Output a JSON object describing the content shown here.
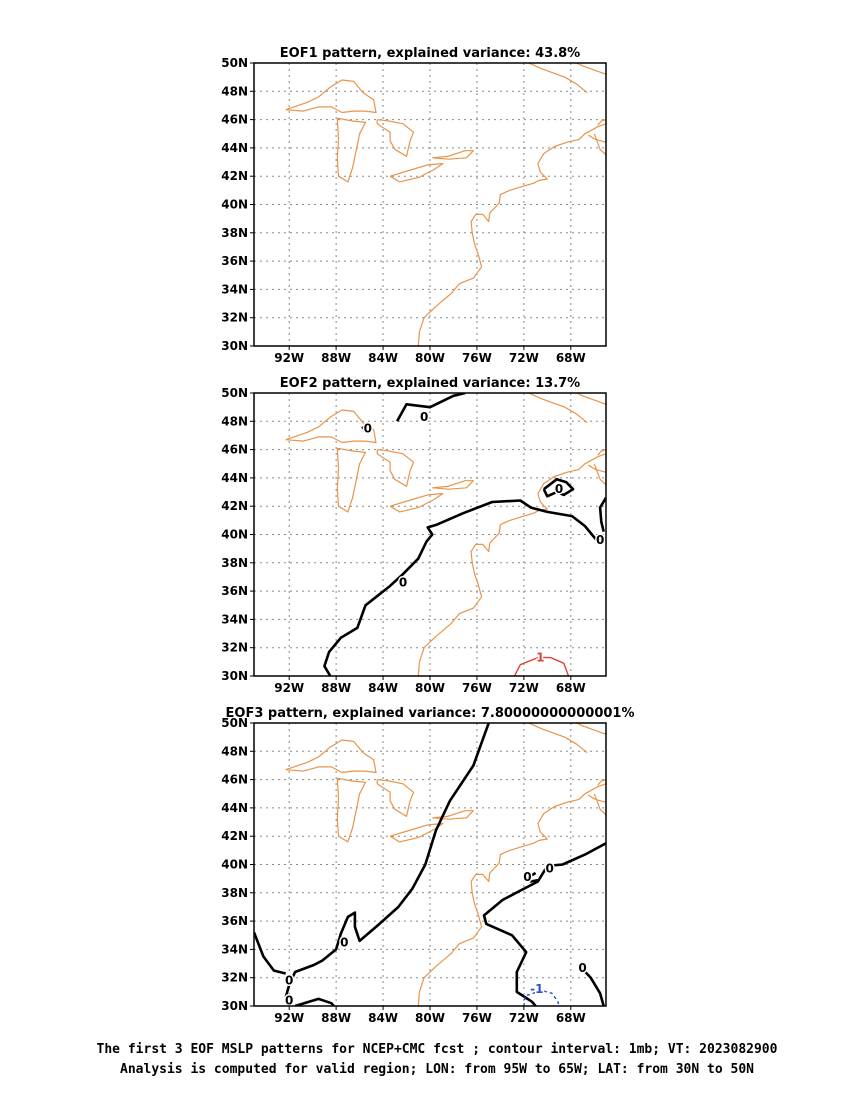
{
  "colors": {
    "coastline": "#e8944a",
    "zero_contour": "#000000",
    "positive_contour": "#e0403a",
    "negative_contour": "#2a4fd8",
    "grid": "#888888"
  },
  "panels": [
    {
      "id": "eof1",
      "title": "EOF1 pattern, explained variance: 43.8%",
      "contours": []
    },
    {
      "id": "eof2",
      "title": "EOF2 pattern, explained variance: 13.7%",
      "contours": [
        {
          "label": "0",
          "value": 0,
          "style": "zero",
          "points": [
            [
              -82.8,
              48.0
            ],
            [
              -82.0,
              49.2
            ],
            [
              -80.0,
              49.0
            ],
            [
              -78.0,
              49.8
            ],
            [
              -77.0,
              50.0
            ]
          ],
          "label_at": [
            -80.5,
            48.3
          ]
        },
        {
          "label": "0",
          "value": 0,
          "style": "zero",
          "points": [
            [
              -85.7,
              47.4
            ],
            [
              -85.2,
              47.3
            ],
            [
              -85.4,
              47.7
            ],
            [
              -85.8,
              47.5
            ]
          ],
          "label_at": [
            -85.3,
            47.5
          ]
        },
        {
          "label": "0",
          "value": 0,
          "style": "zero",
          "points": [
            [
              -70.3,
              43.2
            ],
            [
              -69.2,
              43.9
            ],
            [
              -68.4,
              43.7
            ],
            [
              -67.8,
              43.2
            ],
            [
              -68.6,
              42.8
            ],
            [
              -69.2,
              43.0
            ],
            [
              -70.0,
              42.7
            ],
            [
              -70.3,
              43.2
            ]
          ],
          "label_at": [
            -69.0,
            43.2
          ]
        },
        {
          "label": "0",
          "value": 0,
          "style": "zero",
          "points": [
            [
              -88.5,
              30.0
            ],
            [
              -89.0,
              30.7
            ],
            [
              -88.6,
              31.7
            ],
            [
              -87.6,
              32.7
            ],
            [
              -86.2,
              33.4
            ],
            [
              -85.5,
              35.0
            ],
            [
              -83.5,
              36.3
            ],
            [
              -82.3,
              37.2
            ],
            [
              -81.0,
              38.3
            ],
            [
              -80.3,
              39.5
            ],
            [
              -79.8,
              40.0
            ],
            [
              -80.2,
              40.5
            ],
            [
              -79.4,
              40.7
            ],
            [
              -77.2,
              41.5
            ],
            [
              -74.7,
              42.3
            ],
            [
              -72.3,
              42.4
            ],
            [
              -71.4,
              41.9
            ],
            [
              -70.0,
              41.6
            ],
            [
              -67.9,
              41.3
            ],
            [
              -66.8,
              40.6
            ],
            [
              -66.2,
              40.0
            ],
            [
              -65.8,
              39.6
            ]
          ],
          "label_at": [
            -82.3,
            36.6
          ]
        },
        {
          "label": "0",
          "value": 0,
          "style": "zero",
          "points": [
            [
              -65.0,
              42.6
            ],
            [
              -65.5,
              41.9
            ],
            [
              -65.4,
              40.9
            ],
            [
              -65.2,
              40.2
            ]
          ],
          "label_at": [
            -65.5,
            39.6
          ]
        },
        {
          "label": "1",
          "value": 1,
          "style": "positive",
          "points": [
            [
              -72.8,
              30.0
            ],
            [
              -72.3,
              30.8
            ],
            [
              -70.8,
              31.3
            ],
            [
              -69.7,
              31.3
            ],
            [
              -68.6,
              30.9
            ],
            [
              -68.2,
              30.0
            ]
          ],
          "label_at": [
            -70.6,
            31.3
          ]
        }
      ]
    },
    {
      "id": "eof3",
      "title": "EOF3 pattern, explained variance: 7.80000000000001%",
      "contours": [
        {
          "label": "0",
          "value": 0,
          "style": "zero",
          "points": [
            [
              -75.0,
              50.0
            ],
            [
              -76.3,
              47.0
            ],
            [
              -78.3,
              44.5
            ],
            [
              -79.5,
              42.4
            ],
            [
              -80.4,
              40.0
            ],
            [
              -81.5,
              38.3
            ],
            [
              -82.7,
              37.0
            ],
            [
              -84.3,
              35.8
            ],
            [
              -86.0,
              34.6
            ],
            [
              -86.4,
              35.6
            ],
            [
              -86.4,
              36.6
            ],
            [
              -87.0,
              36.3
            ],
            [
              -87.6,
              35.1
            ],
            [
              -88.0,
              34.0
            ],
            [
              -89.2,
              33.2
            ],
            [
              -89.9,
              32.9
            ],
            [
              -91.5,
              32.4
            ],
            [
              -92.0,
              31.5
            ],
            [
              -92.3,
              30.6
            ],
            [
              -92.0,
              30.0
            ]
          ],
          "label_at": [
            -87.3,
            34.5
          ]
        },
        {
          "label": "0",
          "value": 0,
          "style": "zero",
          "points": [
            [
              -95.0,
              35.2
            ],
            [
              -94.2,
              33.5
            ],
            [
              -93.3,
              32.5
            ],
            [
              -92.3,
              32.3
            ]
          ],
          "label_at": [
            -92.0,
            31.8
          ]
        },
        {
          "label": "0",
          "value": 0,
          "style": "zero",
          "points": [
            [
              -91.5,
              30.0
            ],
            [
              -89.5,
              30.5
            ],
            [
              -88.4,
              30.2
            ],
            [
              -88.2,
              30.0
            ]
          ],
          "label_at": [
            -92.0,
            30.4
          ]
        },
        {
          "label": "0",
          "value": 0,
          "style": "zero",
          "points": [
            [
              -65.0,
              41.5
            ],
            [
              -66.8,
              40.7
            ],
            [
              -68.7,
              40.0
            ],
            [
              -70.0,
              39.9
            ],
            [
              -70.8,
              38.8
            ],
            [
              -72.2,
              38.2
            ],
            [
              -73.8,
              37.5
            ],
            [
              -75.4,
              36.4
            ],
            [
              -75.2,
              35.8
            ],
            [
              -73.0,
              35.0
            ],
            [
              -71.8,
              33.8
            ],
            [
              -72.6,
              32.4
            ],
            [
              -72.6,
              31.0
            ],
            [
              -71.3,
              30.3
            ],
            [
              -71.0,
              30.0
            ]
          ],
          "label_at": [
            -69.8,
            39.7
          ]
        },
        {
          "label": "0",
          "value": 0,
          "style": "zero",
          "points": [
            [
              -71.0,
              39.4
            ],
            [
              -71.6,
              39.1
            ],
            [
              -71.4,
              38.8
            ],
            [
              -70.8,
              38.9
            ]
          ],
          "label_at": [
            -71.7,
            39.1
          ]
        },
        {
          "label": "0",
          "value": 0,
          "style": "zero",
          "points": [
            [
              -67.2,
              32.8
            ],
            [
              -66.3,
              32.0
            ],
            [
              -65.5,
              30.9
            ],
            [
              -65.2,
              30.0
            ]
          ],
          "label_at": [
            -67.0,
            32.7
          ]
        },
        {
          "label": "-1",
          "value": -1,
          "style": "negative",
          "points": [
            [
              -72.0,
              30.0
            ],
            [
              -71.9,
              30.7
            ],
            [
              -70.5,
              31.1
            ],
            [
              -69.6,
              30.9
            ],
            [
              -69.1,
              30.3
            ],
            [
              -69.0,
              30.0
            ]
          ],
          "label_at": [
            -70.9,
            31.2
          ]
        }
      ]
    }
  ],
  "map": {
    "lon_range": [
      -95,
      -65
    ],
    "lat_range": [
      30,
      50
    ],
    "lon_ticks": [
      {
        "value": -92,
        "label": "92W"
      },
      {
        "value": -88,
        "label": "88W"
      },
      {
        "value": -84,
        "label": "84W"
      },
      {
        "value": -80,
        "label": "80W"
      },
      {
        "value": -76,
        "label": "76W"
      },
      {
        "value": -72,
        "label": "72W"
      },
      {
        "value": -68,
        "label": "68W"
      }
    ],
    "lat_ticks": [
      {
        "value": 30,
        "label": "30N"
      },
      {
        "value": 32,
        "label": "32N"
      },
      {
        "value": 34,
        "label": "34N"
      },
      {
        "value": 36,
        "label": "36N"
      },
      {
        "value": 38,
        "label": "38N"
      },
      {
        "value": 40,
        "label": "40N"
      },
      {
        "value": 42,
        "label": "42N"
      },
      {
        "value": 44,
        "label": "44N"
      },
      {
        "value": 46,
        "label": "46N"
      },
      {
        "value": 48,
        "label": "48N"
      },
      {
        "value": 50,
        "label": "50N"
      }
    ],
    "grid": true
  },
  "coastlines": [
    [
      [
        -92.3,
        46.7
      ],
      [
        -90.5,
        47.2
      ],
      [
        -89.5,
        47.6
      ],
      [
        -88.5,
        48.3
      ],
      [
        -87.5,
        48.8
      ],
      [
        -86.5,
        48.7
      ],
      [
        -85.7,
        47.9
      ],
      [
        -84.8,
        47.4
      ],
      [
        -84.6,
        46.5
      ],
      [
        -85.5,
        46.6
      ],
      [
        -86.5,
        46.6
      ],
      [
        -87.5,
        46.5
      ],
      [
        -88.4,
        46.9
      ],
      [
        -89.5,
        46.9
      ],
      [
        -90.8,
        46.6
      ],
      [
        -92.3,
        46.7
      ]
    ],
    [
      [
        -87.9,
        46.1
      ],
      [
        -87.8,
        44.7
      ],
      [
        -87.9,
        43.2
      ],
      [
        -87.8,
        42.0
      ],
      [
        -87.0,
        41.6
      ],
      [
        -86.6,
        42.6
      ],
      [
        -86.3,
        43.8
      ],
      [
        -86.0,
        45.0
      ],
      [
        -85.5,
        45.8
      ],
      [
        -86.6,
        45.9
      ],
      [
        -87.9,
        46.1
      ]
    ],
    [
      [
        -84.5,
        46.0
      ],
      [
        -83.5,
        45.9
      ],
      [
        -82.3,
        45.7
      ],
      [
        -81.4,
        45.1
      ],
      [
        -81.7,
        44.5
      ],
      [
        -82.0,
        43.4
      ],
      [
        -83.0,
        43.9
      ],
      [
        -83.4,
        44.5
      ],
      [
        -83.4,
        45.1
      ],
      [
        -84.5,
        45.7
      ],
      [
        -84.5,
        46.0
      ]
    ],
    [
      [
        -83.4,
        42.0
      ],
      [
        -81.8,
        42.4
      ],
      [
        -80.2,
        42.8
      ],
      [
        -78.9,
        42.9
      ],
      [
        -79.6,
        42.5
      ],
      [
        -81.0,
        41.9
      ],
      [
        -82.6,
        41.6
      ],
      [
        -83.4,
        42.0
      ]
    ],
    [
      [
        -79.8,
        43.3
      ],
      [
        -78.5,
        43.4
      ],
      [
        -77.0,
        43.8
      ],
      [
        -76.3,
        43.8
      ],
      [
        -76.9,
        43.3
      ],
      [
        -78.4,
        43.2
      ],
      [
        -79.8,
        43.3
      ]
    ],
    [
      [
        -81.0,
        30.0
      ],
      [
        -80.9,
        31.0
      ],
      [
        -80.5,
        32.0
      ],
      [
        -79.5,
        32.8
      ],
      [
        -78.2,
        33.7
      ],
      [
        -77.5,
        34.4
      ],
      [
        -76.3,
        34.8
      ],
      [
        -75.6,
        35.6
      ],
      [
        -75.9,
        36.5
      ],
      [
        -76.2,
        37.2
      ],
      [
        -76.4,
        38.0
      ],
      [
        -76.5,
        38.8
      ],
      [
        -76.1,
        39.3
      ],
      [
        -75.5,
        39.3
      ],
      [
        -75.0,
        38.8
      ],
      [
        -74.9,
        39.4
      ],
      [
        -74.1,
        40.1
      ],
      [
        -74.0,
        40.7
      ],
      [
        -73.2,
        41.0
      ],
      [
        -72.0,
        41.3
      ],
      [
        -71.2,
        41.5
      ],
      [
        -70.7,
        41.7
      ],
      [
        -70.0,
        41.8
      ],
      [
        -70.6,
        42.3
      ],
      [
        -70.8,
        42.9
      ],
      [
        -70.3,
        43.6
      ],
      [
        -69.4,
        44.1
      ],
      [
        -68.3,
        44.4
      ],
      [
        -67.3,
        44.6
      ],
      [
        -66.8,
        45.0
      ],
      [
        -65.7,
        45.5
      ],
      [
        -65.0,
        45.7
      ]
    ],
    [
      [
        -66.6,
        47.9
      ],
      [
        -67.5,
        48.5
      ],
      [
        -68.5,
        49.0
      ],
      [
        -70.5,
        49.6
      ],
      [
        -71.6,
        50.0
      ]
    ],
    [
      [
        -65.0,
        49.2
      ],
      [
        -66.0,
        49.5
      ],
      [
        -67.0,
        49.8
      ],
      [
        -67.5,
        50.0
      ]
    ],
    [
      [
        -66.5,
        44.9
      ],
      [
        -65.9,
        44.6
      ],
      [
        -65.0,
        44.4
      ]
    ],
    [
      [
        -65.0,
        43.5
      ],
      [
        -65.5,
        43.9
      ],
      [
        -66.0,
        45.0
      ]
    ],
    [
      [
        -65.7,
        45.6
      ],
      [
        -65.4,
        45.9
      ],
      [
        -65.0,
        46.0
      ]
    ]
  ],
  "caption": {
    "line1": "The first 3 EOF MSLP patterns for NCEP+CMC fcst ; contour interval: 1mb; VT: 2023082900",
    "line2": "Analysis is computed for valid region; LON: from 95W to 65W; LAT: from 30N to 50N"
  }
}
